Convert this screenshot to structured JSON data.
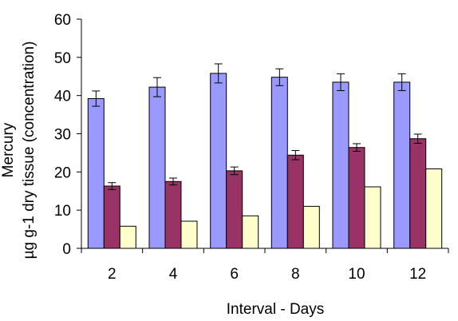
{
  "chart_data": {
    "type": "bar",
    "title": "",
    "xlabel": "Interval - Days",
    "ylabel_lines": [
      "Mercury",
      "µg g-1 dry tissue (concentration)"
    ],
    "categories": [
      "2",
      "4",
      "6",
      "8",
      "10",
      "12"
    ],
    "ylim": [
      0,
      60
    ],
    "yticks": [
      "0",
      "10",
      "20",
      "30",
      "40",
      "50",
      "60"
    ],
    "ytick_values": [
      0,
      10,
      20,
      30,
      40,
      50,
      60
    ],
    "grid": false,
    "legend": "none",
    "series": [
      {
        "color": "#9999ff",
        "values": [
          39.2,
          42.2,
          45.8,
          44.8,
          43.5,
          43.5
        ],
        "errors": [
          2.0,
          2.5,
          2.5,
          2.2,
          2.2,
          2.2
        ]
      },
      {
        "color": "#993366",
        "values": [
          16.3,
          17.5,
          20.3,
          24.4,
          26.4,
          28.7
        ],
        "errors": [
          0.9,
          0.9,
          1.0,
          1.2,
          1.0,
          1.2
        ]
      },
      {
        "color": "#ffffcc",
        "values": [
          5.8,
          7.1,
          8.5,
          11.0,
          16.1,
          20.8
        ],
        "errors": [
          0,
          0,
          0,
          0,
          0,
          0
        ]
      }
    ]
  }
}
